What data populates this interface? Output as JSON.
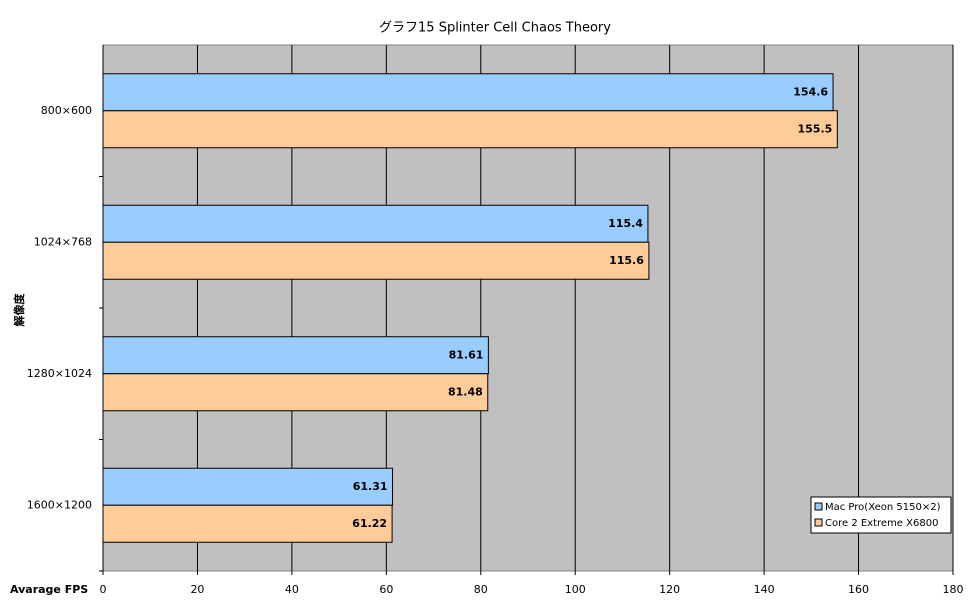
{
  "chart_data": {
    "type": "hbar",
    "title": "グラフ15  Splinter Cell Chaos Theory",
    "x_label": "Avarage FPS",
    "y_label": "解像度",
    "categories": [
      "800×600",
      "1024×768",
      "1280×1024",
      "1600×1200"
    ],
    "series": [
      {
        "name": "Mac Pro(Xeon 5150×2)",
        "color": "#99ccff",
        "values": [
          154.6,
          115.4,
          81.61,
          61.31
        ]
      },
      {
        "name": "Core 2 Extreme X6800",
        "color": "#ffcc99",
        "values": [
          155.5,
          115.6,
          81.48,
          61.22
        ]
      }
    ],
    "xlim": [
      0,
      180
    ],
    "xticks": [
      0,
      20,
      40,
      60,
      80,
      100,
      120,
      140,
      160,
      180
    ],
    "grid": true,
    "plot_background": "#c0c0c0",
    "legend": "lower right"
  }
}
